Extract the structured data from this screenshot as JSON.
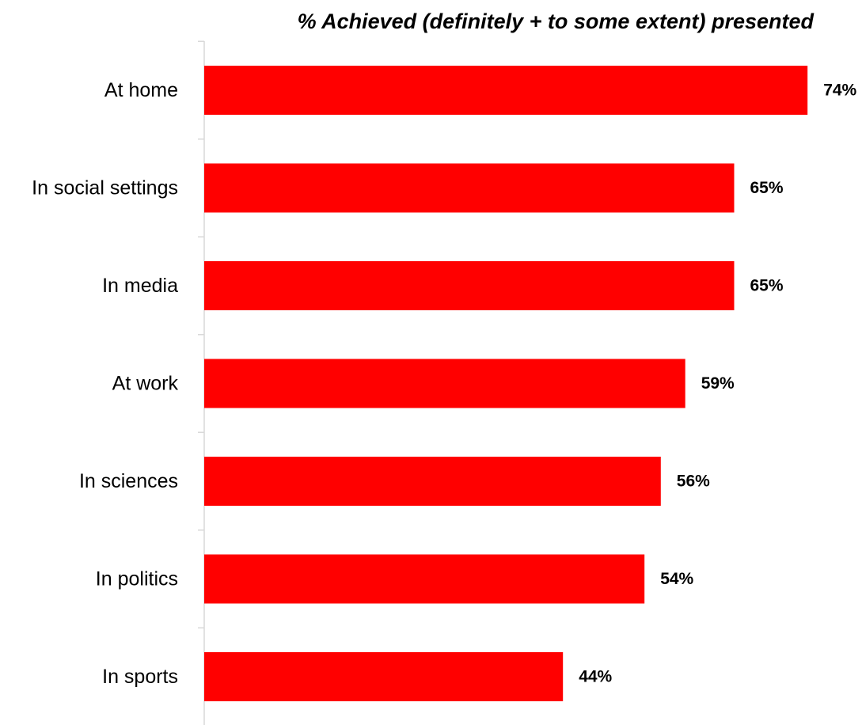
{
  "chart_data": {
    "type": "bar",
    "orientation": "horizontal",
    "title": "% Achieved (definitely + to some extent) presented",
    "categories": [
      "At home",
      "In social settings",
      "In media",
      "At work",
      "In sciences",
      "In politics",
      "In sports"
    ],
    "values": [
      74,
      65,
      65,
      59,
      56,
      54,
      44
    ],
    "value_labels": [
      "74%",
      "65%",
      "65%",
      "59%",
      "56%",
      "54%",
      "44%"
    ],
    "xlim": [
      0,
      100
    ],
    "grid": false,
    "legend": "none",
    "bar_color": "#ff0000",
    "axis_color": "#d9d9d9"
  }
}
